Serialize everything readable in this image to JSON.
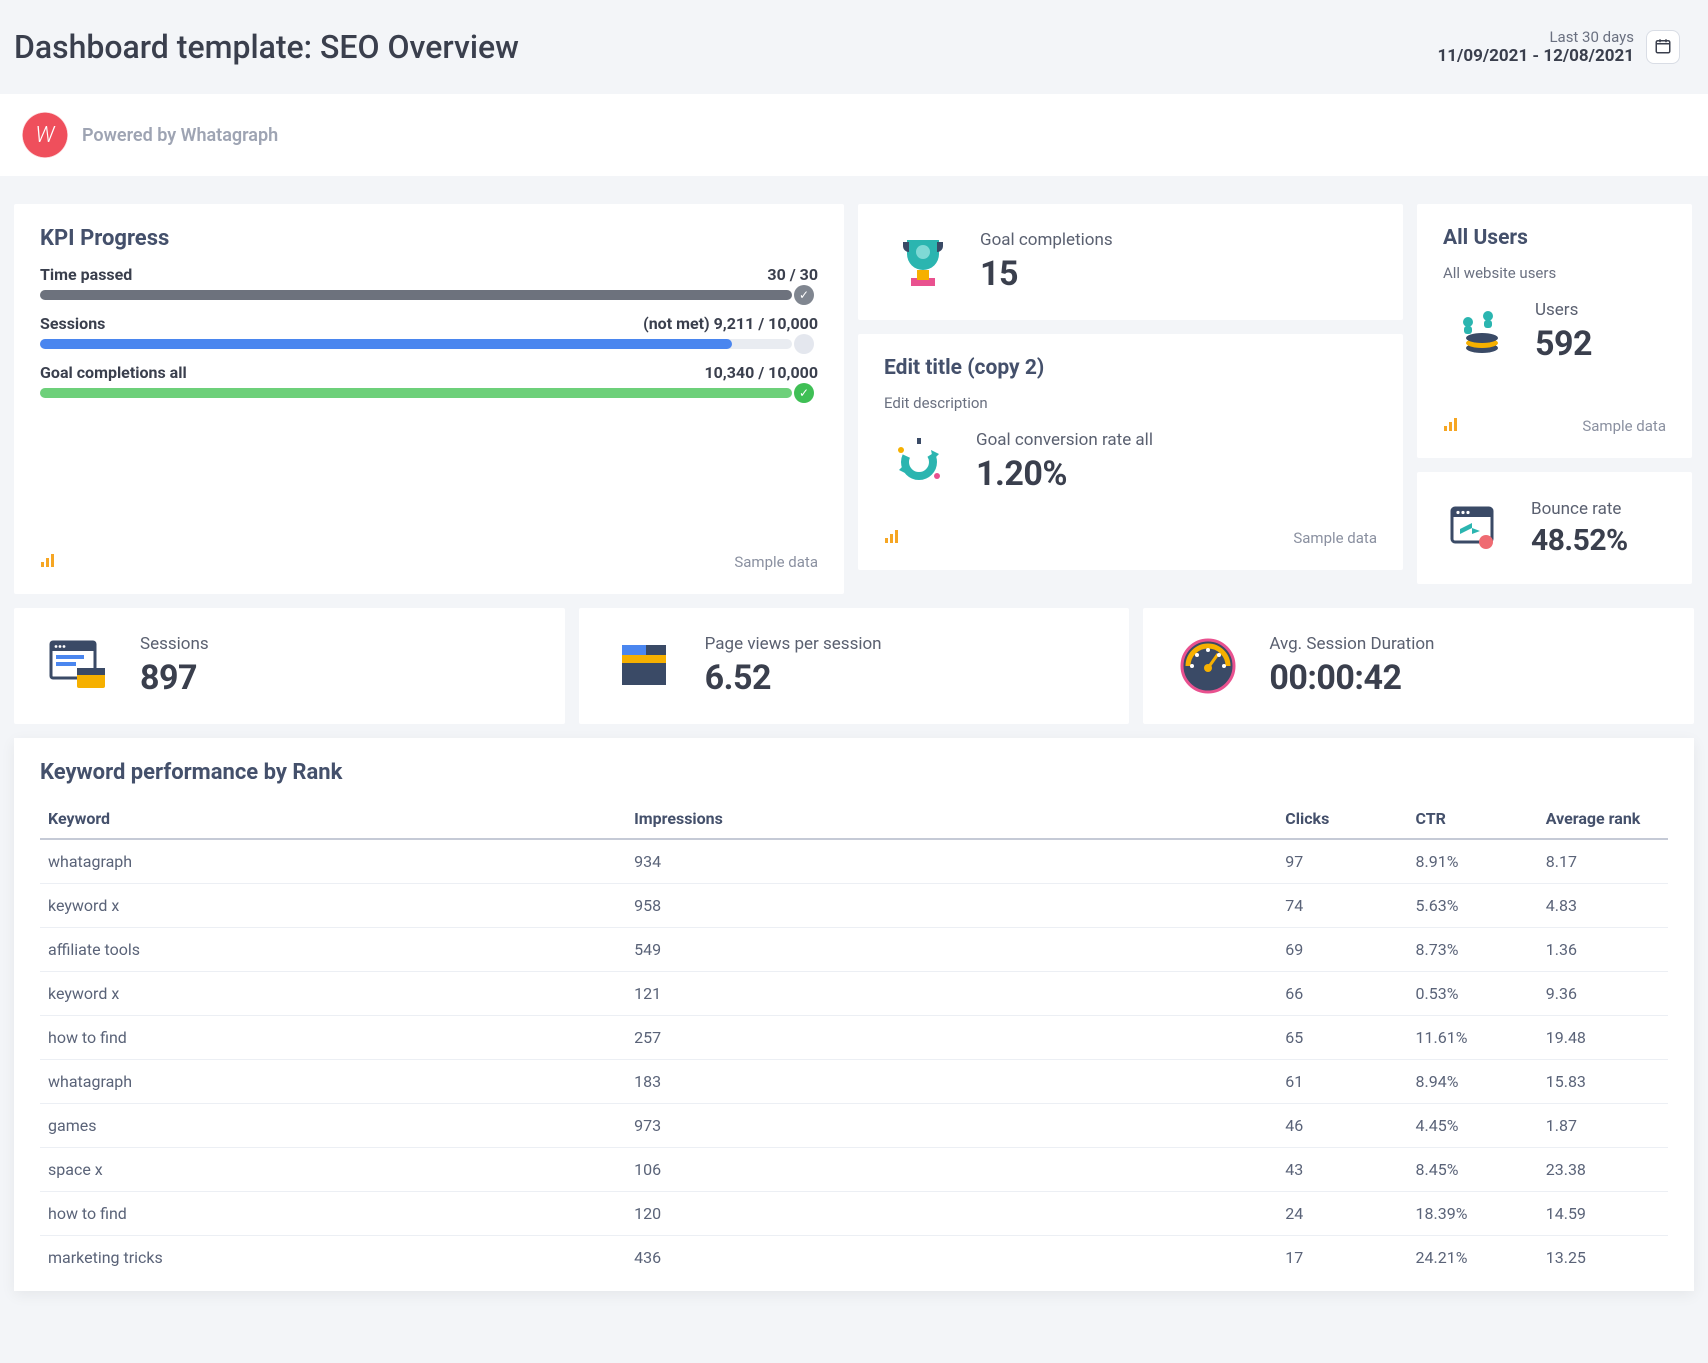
{
  "header": {
    "title": "Dashboard template: SEO Overview",
    "date_label": "Last 30 days",
    "date_range": "11/09/2021 - 12/08/2021"
  },
  "powered": {
    "text": "Powered by Whatagraph",
    "logo_letter": "W"
  },
  "kpi": {
    "title": "KPI Progress",
    "sample_label": "Sample data",
    "rows": [
      {
        "label": "Time passed",
        "note": "",
        "value_text": "30 / 30",
        "fill_pct": 100,
        "fill_color": "#6d727d",
        "end_icon_bg": "#808690",
        "end_icon": "✓"
      },
      {
        "label": "Sessions",
        "note": "(not met)",
        "value_text": "9,211 / 10,000",
        "fill_pct": 92,
        "fill_color": "#4a86ef",
        "end_icon_bg": "#e4e7ee",
        "end_icon": ""
      },
      {
        "label": "Goal completions all",
        "note": "",
        "value_text": "10,340 / 10,000",
        "fill_pct": 100,
        "fill_color": "#6dd07a",
        "end_icon_bg": "#3fbf55",
        "end_icon": "✓"
      }
    ]
  },
  "goal_completions": {
    "label": "Goal completions",
    "value": "15"
  },
  "conversion": {
    "title": "Edit title (copy 2)",
    "subtitle": "Edit description",
    "label": "Goal conversion rate all",
    "value": "1.20%",
    "sample_label": "Sample data"
  },
  "all_users": {
    "title": "All Users",
    "subtitle": "All website users",
    "label": "Users",
    "value": "592",
    "sample_label": "Sample data"
  },
  "bounce": {
    "label": "Bounce rate",
    "value": "48.52%"
  },
  "stats": {
    "sessions": {
      "label": "Sessions",
      "value": "897"
    },
    "pageviews": {
      "label": "Page views per session",
      "value": "6.52"
    },
    "duration": {
      "label": "Avg. Session Duration",
      "value": "00:00:42"
    }
  },
  "keywords": {
    "title": "Keyword performance by Rank",
    "columns": [
      "Keyword",
      "Impressions",
      "Clicks",
      "CTR",
      "Average rank"
    ],
    "rows": [
      [
        "whatagraph",
        "934",
        "97",
        "8.91%",
        "8.17"
      ],
      [
        "keyword x",
        "958",
        "74",
        "5.63%",
        "4.83"
      ],
      [
        "affiliate tools",
        "549",
        "69",
        "8.73%",
        "1.36"
      ],
      [
        "keyword x",
        "121",
        "66",
        "0.53%",
        "9.36"
      ],
      [
        "how to find",
        "257",
        "65",
        "11.61%",
        "19.48"
      ],
      [
        "whatagraph",
        "183",
        "61",
        "8.94%",
        "15.83"
      ],
      [
        "games",
        "973",
        "46",
        "4.45%",
        "1.87"
      ],
      [
        "space x",
        "106",
        "43",
        "8.45%",
        "23.38"
      ],
      [
        "how to find",
        "120",
        "24",
        "18.39%",
        "14.59"
      ],
      [
        "marketing tricks",
        "436",
        "17",
        "24.21%",
        "13.25"
      ]
    ],
    "col_widths": [
      "36%",
      "40%",
      "8%",
      "8%",
      "8%"
    ]
  },
  "colors": {
    "page_bg": "#f3f5f8",
    "card_bg": "#ffffff",
    "text_primary": "#3a3f4d",
    "text_muted": "#8a90a0",
    "accent_trophy": "#2bb5b0",
    "accent_pink": "#e9518f",
    "accent_blue": "#4a86ef"
  }
}
